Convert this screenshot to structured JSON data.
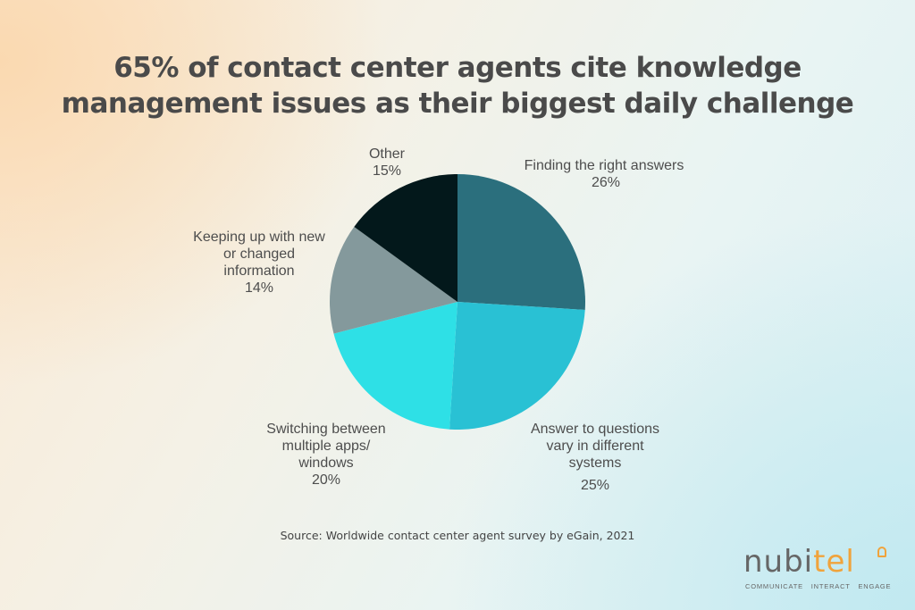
{
  "title": {
    "line1": "65% of contact center agents cite knowledge",
    "line2": "management issues as their biggest daily challenge"
  },
  "chart_data": {
    "type": "pie",
    "title": "65% of contact center agents cite knowledge management issues as their biggest daily challenge",
    "start_angle": "12 o'clock, clockwise",
    "categories": [
      "Finding the right answers",
      "Answer to questions vary in different systems",
      "Switching between multiple apps/ windows",
      "Keeping up with new or changed information",
      "Other"
    ],
    "values": [
      26,
      25,
      20,
      14,
      15
    ],
    "unit": "%",
    "colors": [
      "#2b6f7d",
      "#29c1d4",
      "#2ee0e6",
      "#84999c",
      "#03181b"
    ],
    "legend": "none (direct labels)"
  },
  "labels": [
    {
      "lines": [
        "Finding the right answers"
      ],
      "value": "26%"
    },
    {
      "lines": [
        "Answer to questions",
        "vary in different",
        "systems"
      ],
      "value": "25%"
    },
    {
      "lines": [
        "Switching between",
        "multiple apps/",
        "windows"
      ],
      "value": "20%"
    },
    {
      "lines": [
        "Keeping up with new",
        "or changed",
        "information"
      ],
      "value": "14%"
    },
    {
      "lines": [
        "Other"
      ],
      "value": "15%"
    }
  ],
  "source": "Source: Worldwide contact center agent survey by eGain, 2021",
  "logo": {
    "word_part1": "nubi",
    "word_part2": "tel",
    "tagline": "COMMUNICATE INTERACT ENGAGE"
  }
}
